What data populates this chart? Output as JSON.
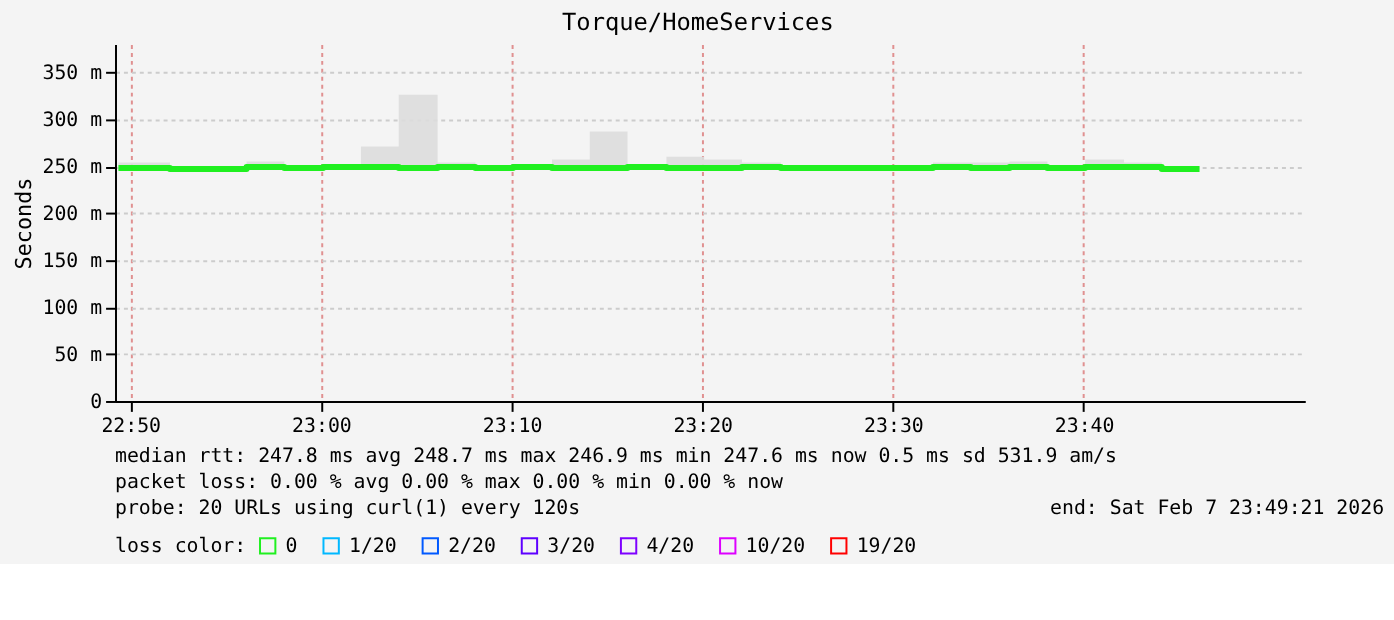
{
  "chart_data": {
    "type": "step",
    "title": "Torque/HomeServices",
    "ylabel": "Seconds",
    "x": [
      22.823,
      22.835,
      22.868,
      22.902,
      22.935,
      22.968,
      23.002,
      23.035,
      23.068,
      23.102,
      23.135,
      23.168,
      23.202,
      23.235,
      23.268,
      23.302,
      23.335,
      23.368,
      23.402,
      23.435,
      23.468,
      23.502,
      23.535,
      23.568,
      23.602,
      23.635,
      23.668,
      23.702,
      23.735,
      23.768
    ],
    "series": [
      {
        "name": "0",
        "color": "#20f020",
        "values": [
          248,
          248,
          247,
          247,
          249,
          248,
          249,
          249,
          248,
          249,
          248,
          249,
          248,
          248,
          249,
          248,
          248,
          249,
          248,
          248,
          248,
          248,
          249,
          248,
          249,
          248,
          249,
          249,
          247,
          247
        ],
        "lower": [
          246,
          246,
          246,
          246,
          246,
          246,
          246,
          246,
          246,
          246,
          246,
          246,
          246,
          246,
          246,
          246,
          246,
          246,
          246,
          246,
          246,
          246,
          246,
          246,
          246,
          246,
          246,
          246,
          246,
          246
        ],
        "upper": [
          254,
          254,
          249,
          249,
          255,
          249,
          250,
          271,
          326,
          254,
          249,
          249,
          257,
          287,
          250,
          260,
          257,
          254,
          250,
          250,
          250,
          250,
          254,
          254,
          255,
          250,
          257,
          254,
          250,
          250
        ]
      },
      {
        "name": "1/20",
        "color": "#00b8ff",
        "values": [
          null,
          null,
          null,
          null,
          null,
          null,
          null,
          null,
          null,
          null,
          null,
          null,
          null,
          null,
          null,
          null,
          null,
          null,
          null,
          null,
          null,
          null,
          null,
          null,
          null,
          null,
          null,
          null,
          null,
          null
        ]
      },
      {
        "name": "2/20",
        "color": "#0059ff",
        "values": [
          null,
          null,
          null,
          null,
          null,
          null,
          null,
          null,
          null,
          null,
          null,
          null,
          null,
          null,
          null,
          null,
          null,
          null,
          null,
          null,
          null,
          null,
          null,
          null,
          null,
          null,
          null,
          null,
          null,
          null
        ]
      },
      {
        "name": "3/20",
        "color": "#5e00ff",
        "values": [
          null,
          null,
          null,
          null,
          null,
          null,
          null,
          null,
          null,
          null,
          null,
          null,
          null,
          null,
          null,
          null,
          null,
          null,
          null,
          null,
          null,
          null,
          null,
          null,
          null,
          null,
          null,
          null,
          null,
          null
        ]
      },
      {
        "name": "4/20",
        "color": "#7e00ff",
        "values": [
          null,
          null,
          null,
          null,
          null,
          null,
          null,
          null,
          null,
          null,
          null,
          null,
          null,
          null,
          null,
          null,
          null,
          null,
          null,
          null,
          null,
          null,
          null,
          null,
          null,
          null,
          null,
          null,
          null,
          null
        ]
      },
      {
        "name": "10/20",
        "color": "#dd00ff",
        "values": [
          null,
          null,
          null,
          null,
          null,
          null,
          null,
          null,
          null,
          null,
          null,
          null,
          null,
          null,
          null,
          null,
          null,
          null,
          null,
          null,
          null,
          null,
          null,
          null,
          null,
          null,
          null,
          null,
          null,
          null
        ]
      },
      {
        "name": "19/20",
        "color": "#ff0000",
        "values": [
          null,
          null,
          null,
          null,
          null,
          null,
          null,
          null,
          null,
          null,
          null,
          null,
          null,
          null,
          null,
          null,
          null,
          null,
          null,
          null,
          null,
          null,
          null,
          null,
          null,
          null,
          null,
          null,
          null,
          null
        ]
      }
    ],
    "xlim": [
      22.82,
      23.86
    ],
    "xticks": [
      {
        "value": 22.8333,
        "label": "22:50"
      },
      {
        "value": 23.0,
        "label": "23:00"
      },
      {
        "value": 23.1667,
        "label": "23:10"
      },
      {
        "value": 23.3333,
        "label": "23:20"
      },
      {
        "value": 23.5,
        "label": "23:30"
      },
      {
        "value": 23.6667,
        "label": "23:40"
      }
    ],
    "ylim": [
      0,
      380
    ],
    "yticks": [
      0,
      {
        "value": 50,
        "label": "50 m"
      },
      {
        "value": 100,
        "label": "100 m"
      },
      {
        "value": 150,
        "label": "150 m"
      },
      {
        "value": 200,
        "label": "200 m"
      },
      {
        "value": 250,
        "label": "250 m"
      },
      {
        "value": 300,
        "label": "300 m"
      },
      {
        "value": 350,
        "label": "350 m"
      }
    ],
    "grid": true,
    "legend": "bottom",
    "legend_title": "loss color:",
    "line_style": "solid",
    "annotations": [
      "median rtt:  247.8 ms avg  248.7 ms max  246.9 ms min  247.6 ms now  0.5 ms sd  531.9   am/s",
      "packet loss: 0.00 % avg  0.00 % max  0.00 % min  0.00 % now",
      "probe:       20 URLs using curl(1) every 120s",
      "end: Sat Feb  7 23:49:21 2026"
    ]
  }
}
